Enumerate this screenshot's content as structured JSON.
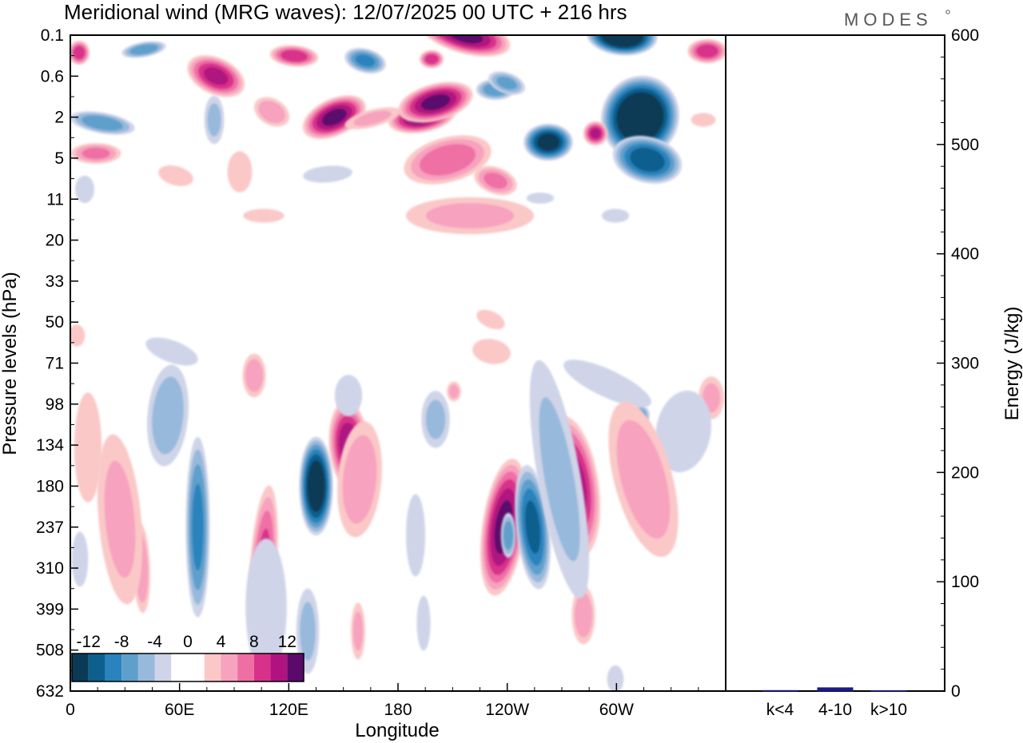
{
  "chart_data": [
    {
      "type": "heatmap",
      "title": "Meridional wind (MRG waves):  12/07/2025  00 UTC  + 216 hrs",
      "xlabel": "Longitude",
      "ylabel": "Pressure levels (hPa)",
      "x_ticks": [
        "0",
        "60E",
        "120E",
        "180",
        "120W",
        "60W"
      ],
      "y_ticks": [
        "0.1",
        "0.6",
        "2",
        "5",
        "11",
        "20",
        "33",
        "50",
        "71",
        "98",
        "134",
        "180",
        "237",
        "310",
        "399",
        "508",
        "632"
      ],
      "colorbar": {
        "labels": [
          "-12",
          "-8",
          "-4",
          "0",
          "4",
          "8",
          "12"
        ],
        "levels": [
          -14,
          -12,
          -10,
          -8,
          -6,
          -4,
          -2,
          0,
          2,
          4,
          6,
          8,
          10,
          12,
          14
        ],
        "colors": [
          "#0b3a57",
          "#0d5f8d",
          "#2a83bd",
          "#5f9fcb",
          "#97b9db",
          "#cfd4e8",
          "#ffffff",
          "#ffffff",
          "#fbc8c8",
          "#f7a2be",
          "#ef6fa5",
          "#d8318a",
          "#b01380",
          "#5a0a6a"
        ]
      },
      "features": [
        {
          "lon": 135,
          "level": "180",
          "value": -14
        },
        {
          "lon": 153,
          "level": "134",
          "value": 11
        },
        {
          "lon": 238,
          "level": "237",
          "value": 12
        },
        {
          "lon": 254,
          "level": "237",
          "value": -10
        },
        {
          "lon": 276,
          "level": "180",
          "value": 11
        },
        {
          "lon": 70,
          "level": "237",
          "value": -8
        },
        {
          "lon": 106,
          "level": "310",
          "value": 8
        },
        {
          "lon": 39,
          "level": "310",
          "value": 5
        },
        {
          "lon": 313,
          "level": "2",
          "value": -16
        },
        {
          "lon": 303,
          "level": "0.1",
          "value": -16
        },
        {
          "lon": 217,
          "level": "0.1",
          "value": 12
        },
        {
          "lon": 145,
          "level": "2",
          "value": 12
        },
        {
          "lon": 193,
          "level": "2",
          "value": 12
        },
        {
          "lon": 80,
          "level": "0.6",
          "value": 10
        }
      ]
    },
    {
      "type": "bar",
      "ylabel": "Energy (J/kg)",
      "categories": [
        "k<4",
        "4-10",
        "k>10"
      ],
      "values": [
        0.5,
        3,
        0.3
      ],
      "ylim": [
        0,
        600
      ],
      "y_ticks": [
        0,
        100,
        200,
        300,
        400,
        500,
        600
      ],
      "bar_color": "#1a1a8c"
    }
  ],
  "brand": "MODES"
}
